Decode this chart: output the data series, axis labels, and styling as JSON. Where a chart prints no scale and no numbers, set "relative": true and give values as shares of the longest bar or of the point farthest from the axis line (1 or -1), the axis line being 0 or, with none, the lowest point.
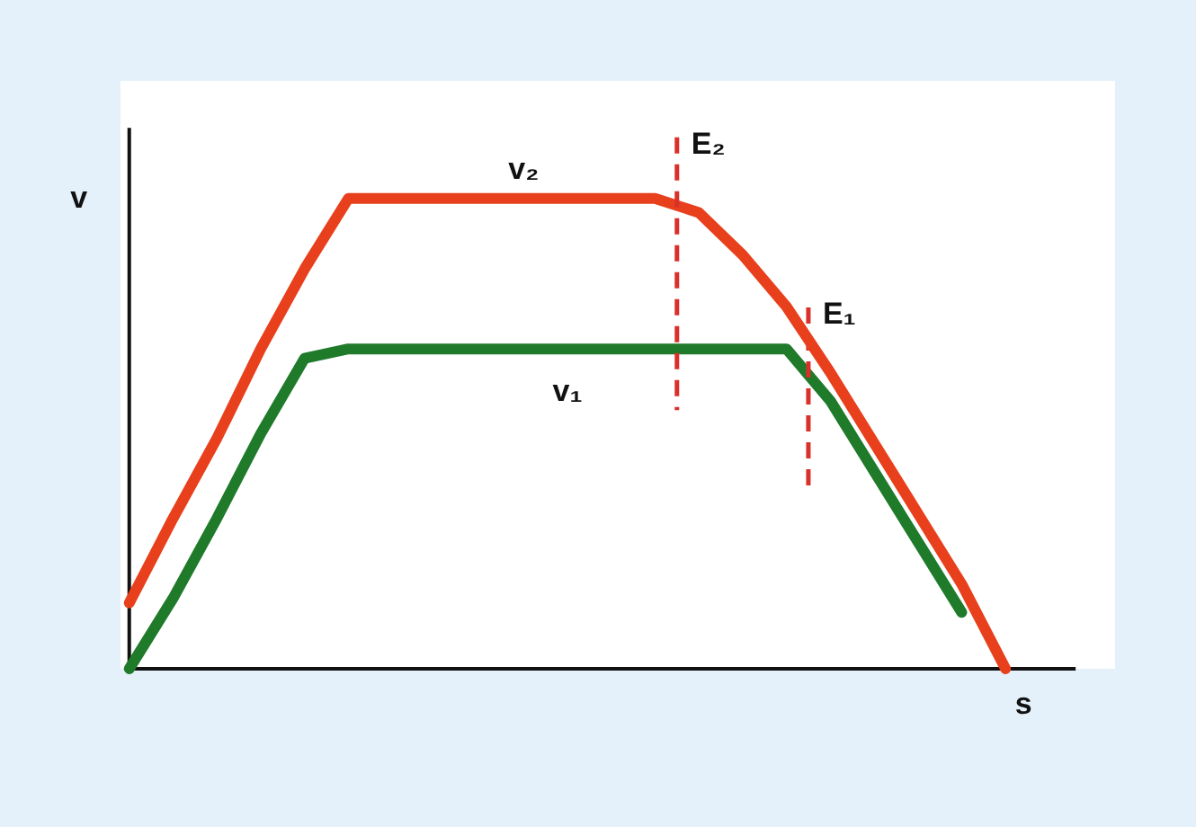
{
  "chart_data": {
    "type": "line",
    "relative": true,
    "xlabel": "s",
    "ylabel": "v",
    "categories": [
      null,
      null,
      null,
      null,
      null,
      null,
      null,
      null,
      null,
      null,
      null,
      null,
      null,
      null,
      null,
      null,
      null,
      null,
      null,
      null,
      null
    ],
    "series": [
      {
        "name": "v₂",
        "color": "#e8401c",
        "values": [
          0.14,
          0.32,
          0.49,
          0.68,
          0.85,
          1.0,
          1.0,
          1.0,
          1.0,
          1.0,
          1.0,
          1.0,
          1.0,
          0.97,
          0.88,
          0.77,
          0.63,
          0.48,
          0.33,
          0.18,
          0.0
        ]
      },
      {
        "name": "v₁",
        "color": "#1f7a2a",
        "values": [
          0.0,
          0.15,
          0.32,
          0.5,
          0.66,
          0.68,
          0.68,
          0.68,
          0.68,
          0.68,
          0.68,
          0.68,
          0.68,
          0.68,
          0.68,
          0.68,
          0.57,
          0.42,
          0.27,
          0.12,
          null
        ]
      }
    ],
    "annotations": [
      "E₂",
      "E₁"
    ],
    "line_style": "solid"
  }
}
